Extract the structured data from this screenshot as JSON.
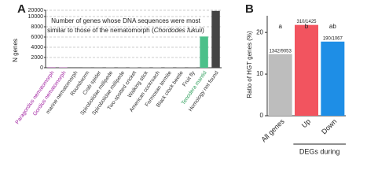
{
  "chart_data": [
    {
      "type": "bar",
      "panel": "A",
      "title": "Number of genes whose DNA sequences were most",
      "title_line2": "similar to those of the nematomorph (",
      "title_species": "Chordodes fukuii",
      "title_end": ")",
      "y_label": "N genes",
      "categories": [
        "Paragordius nematomorph",
        "Gordius nematomorph",
        "marine nematomorph",
        "Roundworm",
        "Crab spider",
        "Spirobolidae millipede",
        "Spirobolidae millipede",
        "Two-spotted cricket",
        "Walking stick",
        "American cockroach",
        "Formosan termite",
        "Black clock beetle",
        "Fruit fly",
        "Tenodera mantid",
        "Homology not found"
      ],
      "category_colors": [
        "#a020a0",
        "#a020a0",
        "#333333",
        "#333333",
        "#333333",
        "#333333",
        "#333333",
        "#333333",
        "#333333",
        "#333333",
        "#333333",
        "#333333",
        "#333333",
        "#2e9e5b",
        "#333333"
      ],
      "values": [
        100,
        80,
        150,
        20,
        30,
        50,
        40,
        60,
        50,
        60,
        50,
        40,
        30,
        6100,
        19000
      ],
      "colors": [
        "#b060b0",
        "#b060b0",
        "#999999",
        "#999999",
        "#999999",
        "#999999",
        "#999999",
        "#999999",
        "#999999",
        "#999999",
        "#999999",
        "#999999",
        "#999999",
        "#4cc08a",
        "#444444"
      ],
      "ylim": [
        0,
        20000
      ],
      "yticks": [
        0,
        2000,
        4000,
        6000,
        8000,
        10000,
        20000
      ],
      "grid": true
    },
    {
      "type": "bar",
      "panel": "B",
      "y_label": "Ratio of HGT genes (%)",
      "categories": [
        "All genes",
        "Up",
        "Down"
      ],
      "values": [
        14.8,
        21.8,
        17.8
      ],
      "value_labels": [
        "1342/9053",
        "310/1425",
        "190/1067"
      ],
      "annotations": [
        "a",
        "b",
        "ab"
      ],
      "colors": [
        "#bdbdbd",
        "#f2545f",
        "#1e8ee6"
      ],
      "group_label": "DEGs during",
      "ylim": [
        0,
        24
      ],
      "yticks": [
        0,
        10,
        20
      ],
      "grid": false
    }
  ]
}
